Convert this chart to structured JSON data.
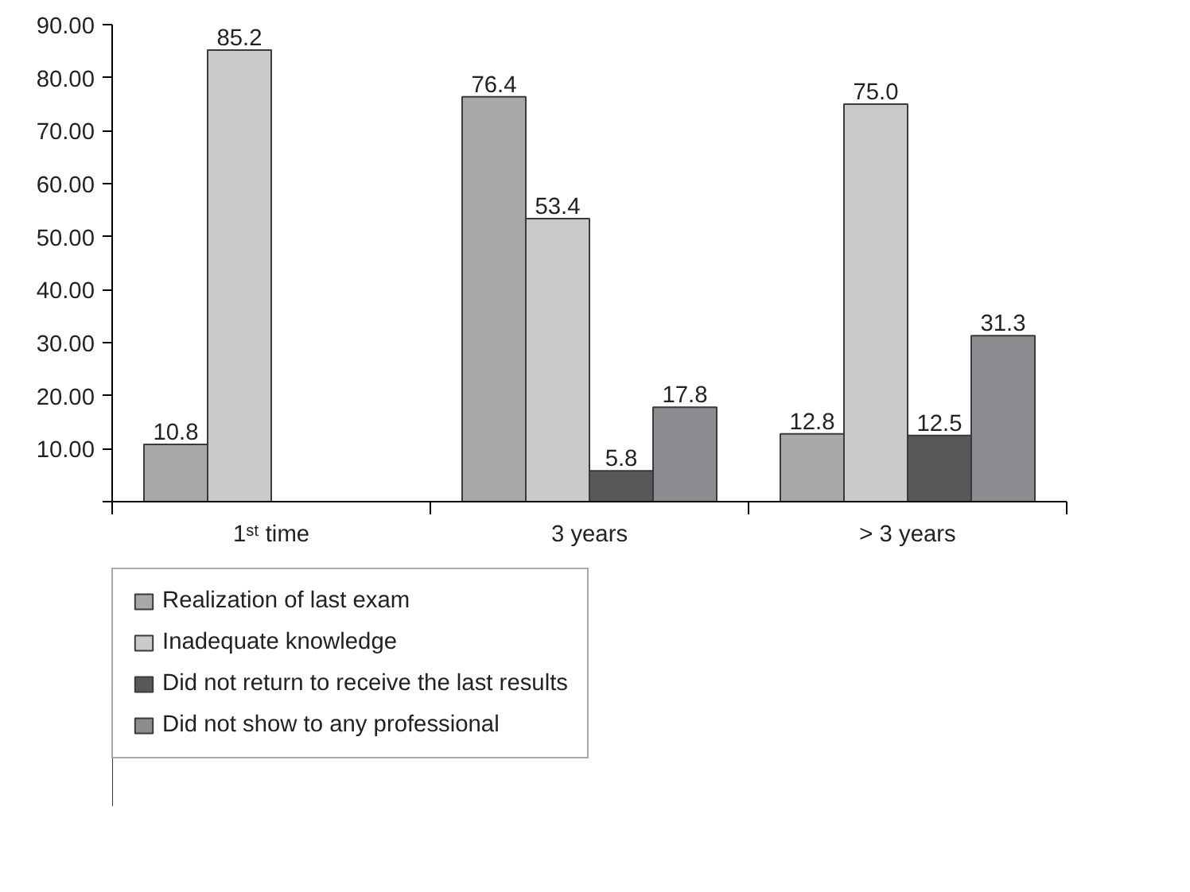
{
  "chart_data": {
    "type": "bar",
    "categories": [
      "1ˢᵗ time",
      "3 years",
      "> 3 years"
    ],
    "series": [
      {
        "name": "Realization of last exam",
        "color": "#a8a8ab",
        "values": [
          10.8,
          76.4,
          12.8
        ],
        "value_labels": [
          "10.8",
          "76.4",
          "12.8"
        ]
      },
      {
        "name": "Inadequate knowledge",
        "color": "#c9cacb",
        "values": [
          85.2,
          53.4,
          75.0
        ],
        "value_labels": [
          "85.2",
          "53.4",
          "75.0"
        ]
      },
      {
        "name": "Did not return to receive the last results",
        "color": "#58585a",
        "values": [
          null,
          5.8,
          12.5
        ],
        "value_labels": [
          null,
          "5.8",
          "12.5"
        ]
      },
      {
        "name": "Did not show to any professional",
        "color": "#8c8d90",
        "values": [
          null,
          17.8,
          31.3
        ],
        "value_labels": [
          null,
          "17.8",
          "31.3"
        ]
      }
    ],
    "ylim": [
      0,
      90
    ],
    "yticks": [
      {
        "value": 0,
        "label": null
      },
      {
        "value": 10,
        "label": "10.00"
      },
      {
        "value": 20,
        "label": "20.00"
      },
      {
        "value": 30,
        "label": "30.00"
      },
      {
        "value": 40,
        "label": "40.00"
      },
      {
        "value": 50,
        "label": "50.00"
      },
      {
        "value": 60,
        "label": "60.00"
      },
      {
        "value": 70,
        "label": "70.00"
      },
      {
        "value": 80,
        "label": "80.00"
      },
      {
        "value": 90,
        "label": "90.00"
      }
    ],
    "grid": false,
    "legend": "bottom"
  }
}
